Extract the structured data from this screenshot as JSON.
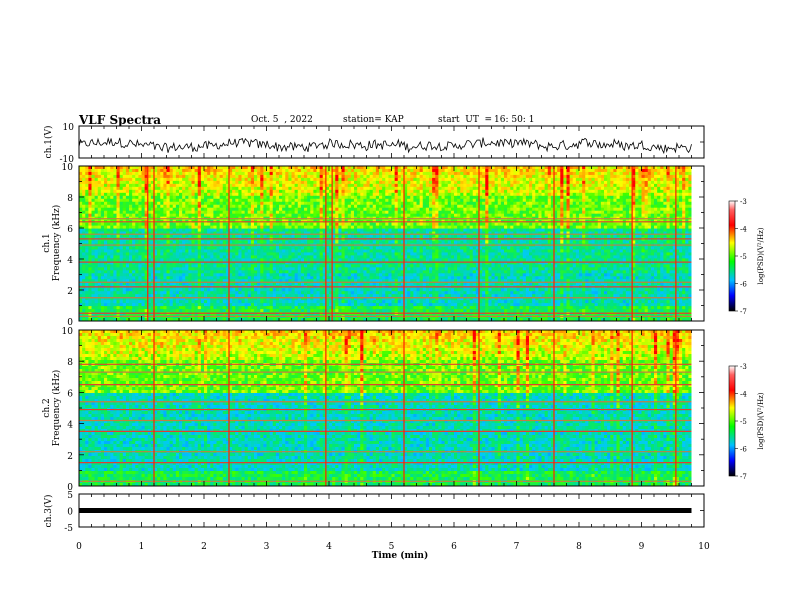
{
  "header": {
    "title": "VLF Spectra",
    "date": "Oct. 5  , 2022",
    "station": "station= KAP",
    "start_label": "start  UT  =",
    "start_time": "16: 50: 1"
  },
  "colors": {
    "spectrogram_low": "#000080",
    "spectrogram_mid": "#00e070",
    "spectrogram_high": "#ff0000",
    "waveform": "#000000"
  },
  "chart_data": [
    {
      "type": "line",
      "panel": "ch1-waveform",
      "title": "",
      "xlabel": "",
      "ylabel": "ch.1(V)",
      "xlim": [
        0,
        10
      ],
      "ylim": [
        -10,
        10
      ],
      "y_ticks": [
        "10",
        "-10"
      ],
      "data_end_min": 9.8,
      "description_of_signal": "noisy waveform centred near -2 V with peaks near 4 V and troughs near -8 V"
    },
    {
      "type": "heatmap",
      "panel": "ch1-spectrogram",
      "ylabel_lines": [
        "ch.1",
        "Frequency (kHz)"
      ],
      "xlim": [
        0,
        10
      ],
      "ylim": [
        0,
        10
      ],
      "y_ticks": [
        "0",
        "2",
        "4",
        "6",
        "8",
        "10"
      ],
      "data_end_min": 9.8,
      "colorbar": {
        "label": "log(PSD)(V²/Hz)",
        "range": [
          -7,
          -3
        ],
        "ticks": [
          "-3",
          "-4",
          "-5",
          "-6",
          "-7"
        ]
      },
      "horizontal_lines_khz": [
        0.3,
        0.5,
        1.5,
        2.2,
        2.5,
        3.8,
        4.9,
        5.3,
        5.6,
        6.4,
        6.6
      ],
      "burst_times_min": [
        1.1,
        1.2,
        2.4,
        3.95,
        4.05,
        5.2,
        6.4,
        7.6,
        8.85,
        9.55
      ]
    },
    {
      "type": "heatmap",
      "panel": "ch2-spectrogram",
      "ylabel_lines": [
        "ch.2",
        "Frequency (kHz)"
      ],
      "xlim": [
        0,
        10
      ],
      "ylim": [
        0,
        10
      ],
      "y_ticks": [
        "0",
        "2",
        "4",
        "6",
        "8",
        "10"
      ],
      "data_end_min": 9.8,
      "colorbar": {
        "label": "log(PSD)(V²/Hz)",
        "range": [
          -7,
          -3
        ],
        "ticks": [
          "-3",
          "-4",
          "-5",
          "-6",
          "-7"
        ]
      },
      "horizontal_lines_khz": [
        0.3,
        1.5,
        2.2,
        3.5,
        4.2,
        4.9,
        5.4,
        6.5,
        7.3,
        7.8
      ],
      "burst_times_min": [
        1.2,
        2.4,
        3.95,
        5.2,
        6.4,
        7.6,
        8.85,
        9.55
      ]
    },
    {
      "type": "line",
      "panel": "ch3-waveform",
      "ylabel": "ch.3(V)",
      "xlabel": "Time  (min)",
      "xlim": [
        0,
        10
      ],
      "ylim": [
        -5,
        5
      ],
      "y_ticks": [
        "5",
        "0",
        "-5"
      ],
      "x_ticks": [
        "0",
        "1",
        "2",
        "3",
        "4",
        "5",
        "6",
        "7",
        "8",
        "9",
        "10"
      ],
      "data_end_min": 9.8,
      "constant_value_v": 0
    }
  ]
}
